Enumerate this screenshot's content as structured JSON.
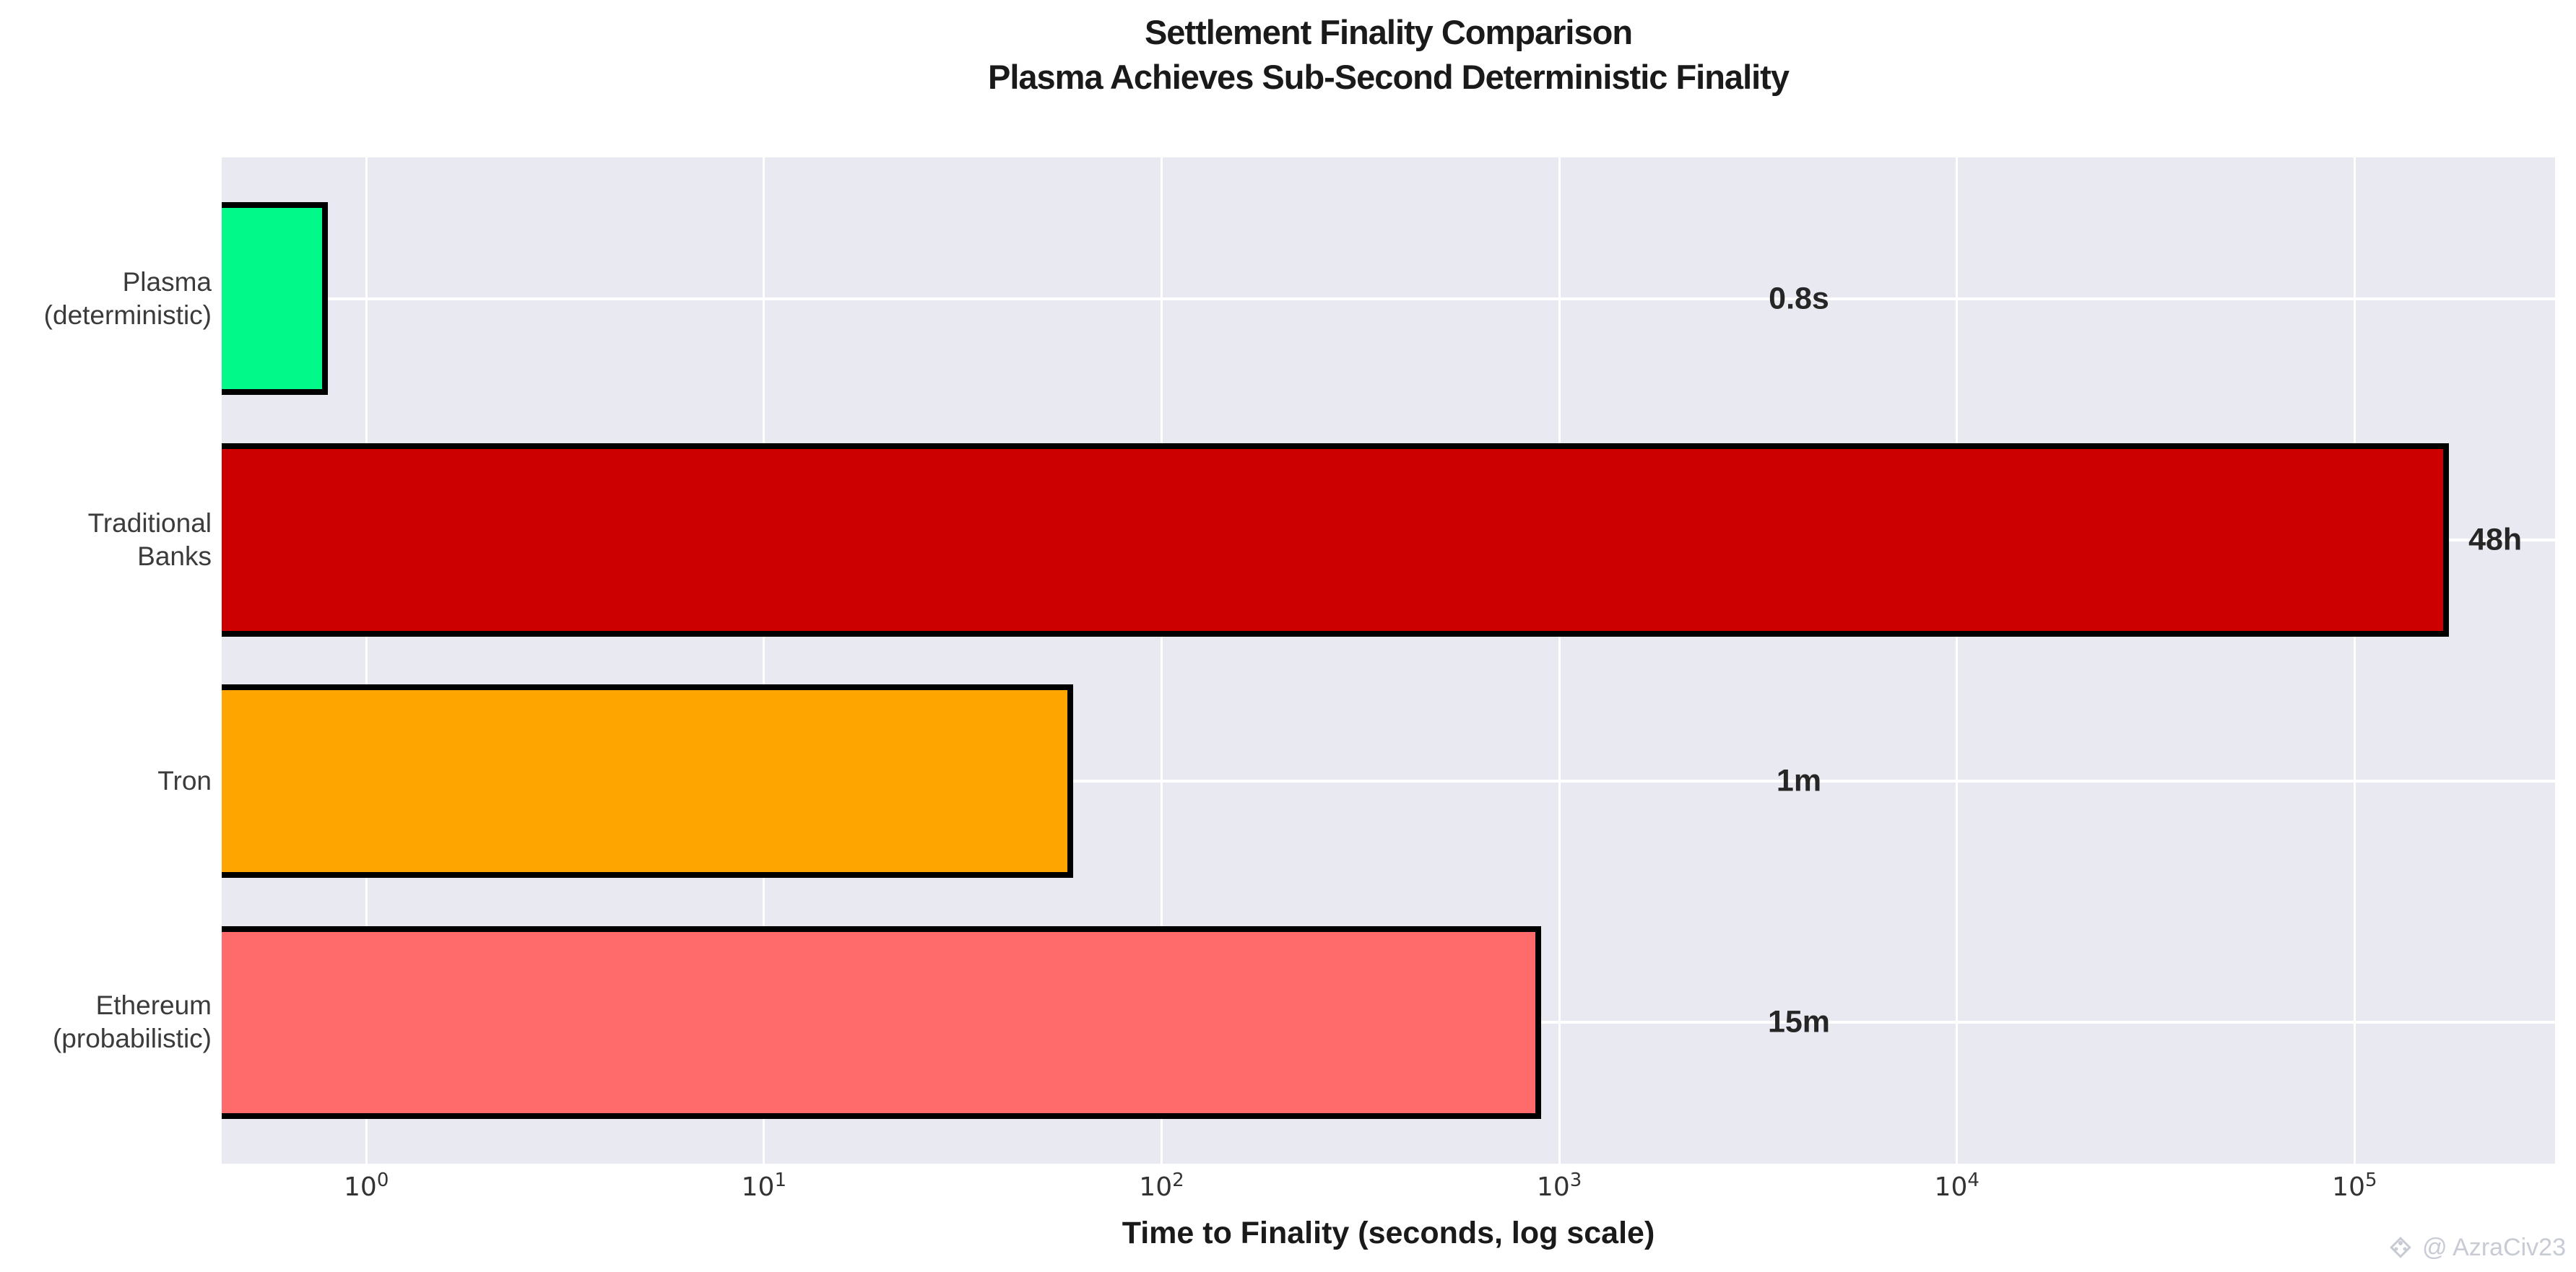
{
  "chart_data": {
    "type": "bar",
    "orientation": "horizontal",
    "x_scale": "log",
    "title_line1": "Settlement Finality Comparison",
    "title_line2": "Plasma Achieves Sub-Second Deterministic Finality",
    "xlabel": "Time to Finality (seconds, log scale)",
    "x_tick_base": "10",
    "x_tick_exponents": [
      0,
      1,
      2,
      3,
      4,
      5
    ],
    "xlim_seconds": [
      0.433,
      319000
    ],
    "categories": [
      "Plasma (deterministic)",
      "Traditional Banks",
      "Tron",
      "Ethereum (probabilistic)"
    ],
    "bars": [
      {
        "label_line1": "Plasma",
        "label_line2": "(deterministic)",
        "value_seconds": 0.8,
        "value_label": "0.8s",
        "color": "#00f988"
      },
      {
        "label_line1": "Traditional",
        "label_line2": "Banks",
        "value_seconds": 172800,
        "value_label": "48h",
        "color": "#cc0000"
      },
      {
        "label_line1": "Tron",
        "value_seconds": 60,
        "value_label": "1m",
        "color": "#ffa500"
      },
      {
        "label_line1": "Ethereum",
        "label_line2": "(probabilistic)",
        "value_seconds": 900,
        "value_label": "15m",
        "color": "#ff6b6b"
      }
    ],
    "plot_background": "#e9e9f1",
    "grid_color": "#ffffff",
    "bar_edge_color": "#000000",
    "legend": "none",
    "grid": "on"
  },
  "watermark": {
    "text": "@ AzraCiv23"
  }
}
